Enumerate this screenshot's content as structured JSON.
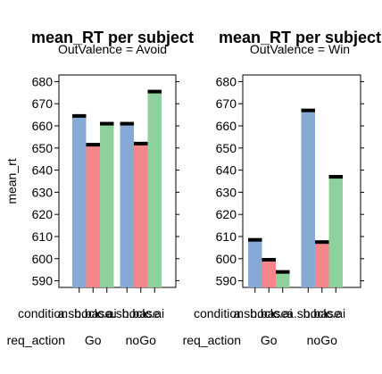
{
  "chart_data": [
    {
      "type": "bar",
      "title": "mean_RT per subject",
      "subtitle": "OutValence = Avoid",
      "ylabel": "mean_rt",
      "ylim": [
        587,
        683
      ],
      "yticks": [
        590,
        600,
        610,
        620,
        630,
        640,
        650,
        660,
        670,
        680
      ],
      "row_labels": {
        "x": "condition",
        "group": "req_action"
      },
      "groups": [
        "Go",
        "noGo"
      ],
      "condition_labels": [
        "a.shock",
        "b.base",
        "c.ai"
      ],
      "series": [
        {
          "condition": "a.shock",
          "color": "#87A9D6",
          "values": [
            664.5,
            661
          ]
        },
        {
          "condition": "b.base",
          "color": "#F4858B",
          "values": [
            651.5,
            652
          ]
        },
        {
          "condition": "c.ai",
          "color": "#8FD19E",
          "values": [
            661,
            675.5
          ]
        }
      ]
    },
    {
      "type": "bar",
      "title": "mean_RT per subject",
      "subtitle": "OutValence = Win",
      "ylabel": "",
      "ylim": [
        587,
        683
      ],
      "yticks": [
        590,
        600,
        610,
        620,
        630,
        640,
        650,
        660,
        670,
        680
      ],
      "row_labels": {
        "x": "condition",
        "group": "req_action"
      },
      "groups": [
        "Go",
        "noGo"
      ],
      "condition_labels": [
        "a.shock",
        "b.base",
        "c.ai"
      ],
      "series": [
        {
          "condition": "a.shock",
          "color": "#87A9D6",
          "values": [
            608.5,
            667
          ]
        },
        {
          "condition": "b.base",
          "color": "#F4858B",
          "values": [
            599.5,
            607.5
          ]
        },
        {
          "condition": "c.ai",
          "color": "#8FD19E",
          "values": [
            594,
            637
          ]
        }
      ]
    }
  ]
}
